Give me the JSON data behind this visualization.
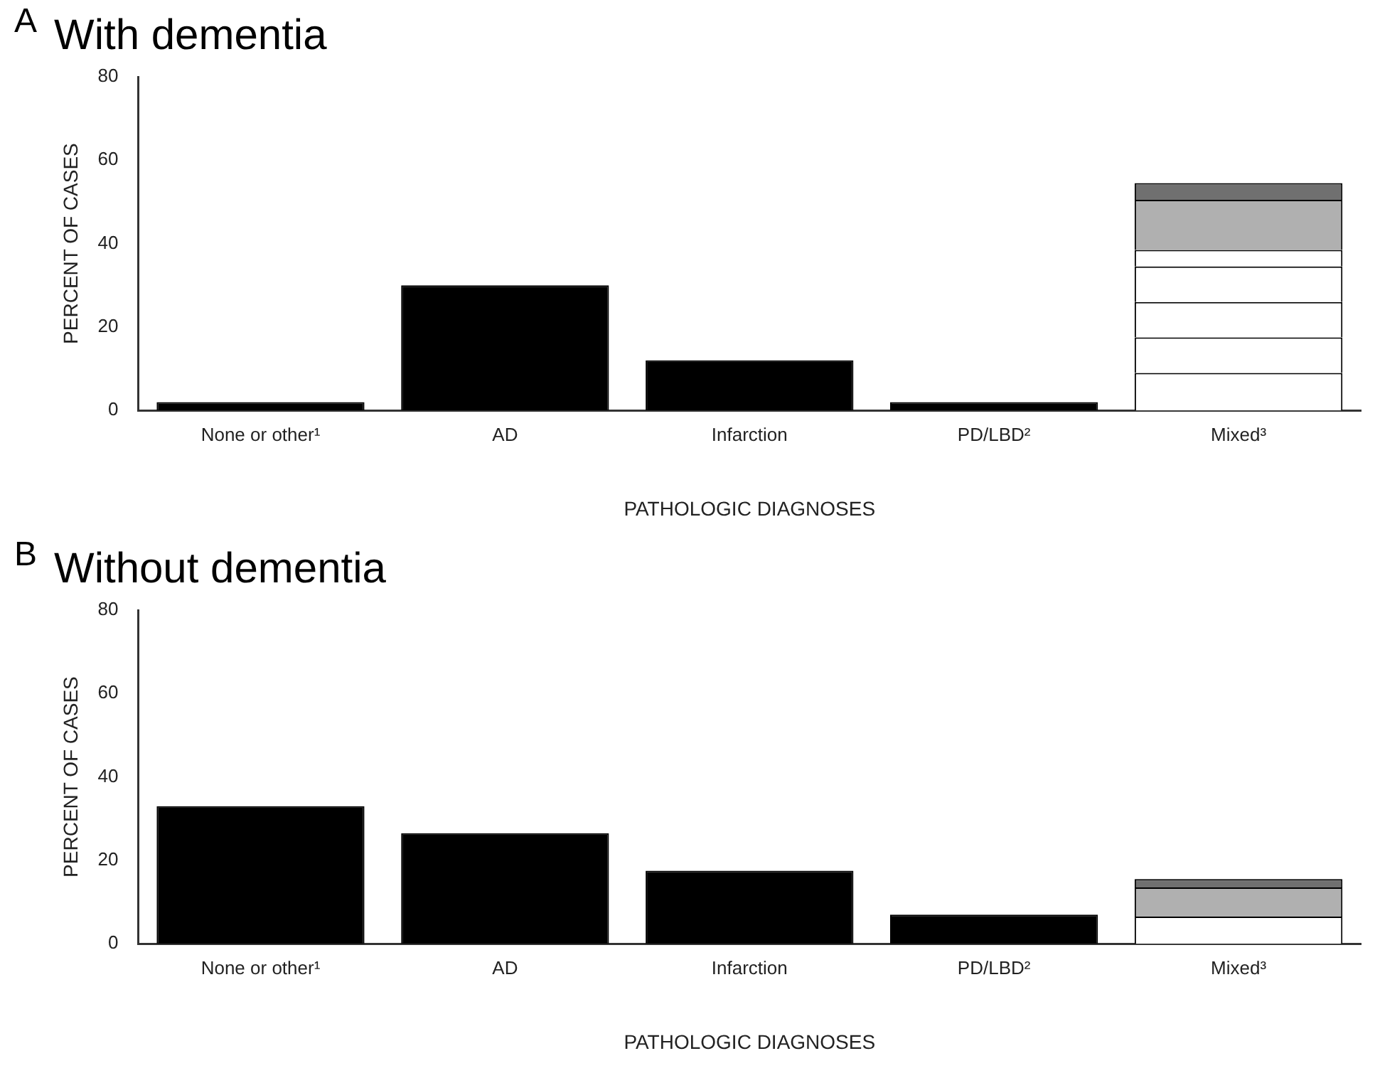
{
  "chart_data": [
    {
      "type": "bar",
      "title": "With dementia",
      "annotations": [
        "A"
      ],
      "xlabel": "PATHOLOGIC DIAGNOSES",
      "ylabel": "PERCENT OF CASES",
      "stacked": true,
      "categories": [
        "None or other¹",
        "AD",
        "Infarction",
        "PD/LBD²",
        "Mixed³"
      ],
      "ylim": [
        0,
        80
      ],
      "yticks": [
        0,
        20,
        40,
        60,
        80
      ],
      "series": [
        {
          "color": "#000000",
          "values": [
            2,
            30,
            12,
            2,
            null
          ]
        },
        {
          "color": "#ffffff",
          "values": [
            null,
            null,
            null,
            null,
            9
          ]
        },
        {
          "color": "#ffffff",
          "values": [
            null,
            null,
            null,
            null,
            8.5
          ]
        },
        {
          "color": "#ffffff",
          "values": [
            null,
            null,
            null,
            null,
            8.5
          ]
        },
        {
          "color": "#ffffff",
          "values": [
            null,
            null,
            null,
            null,
            8.5
          ]
        },
        {
          "color": "#ffffff",
          "values": [
            null,
            null,
            null,
            null,
            4
          ]
        },
        {
          "color": "#b0b0b0",
          "values": [
            null,
            null,
            null,
            null,
            12
          ]
        },
        {
          "color": "#707070",
          "values": [
            null,
            null,
            null,
            null,
            4
          ]
        }
      ]
    },
    {
      "type": "bar",
      "title": "Without dementia",
      "annotations": [
        "B"
      ],
      "xlabel": "PATHOLOGIC DIAGNOSES",
      "ylabel": "PERCENT OF CASES",
      "stacked": true,
      "categories": [
        "None or other¹",
        "AD",
        "Infarction",
        "PD/LBD²",
        "Mixed³"
      ],
      "ylim": [
        0,
        80
      ],
      "yticks": [
        0,
        20,
        40,
        60,
        80
      ],
      "series": [
        {
          "color": "#000000",
          "values": [
            33,
            26.5,
            17.5,
            7,
            null
          ]
        },
        {
          "color": "#ffffff",
          "values": [
            null,
            null,
            null,
            null,
            6.5
          ]
        },
        {
          "color": "#b0b0b0",
          "values": [
            null,
            null,
            null,
            null,
            7
          ]
        },
        {
          "color": "#707070",
          "values": [
            null,
            null,
            null,
            null,
            2
          ]
        }
      ]
    }
  ]
}
